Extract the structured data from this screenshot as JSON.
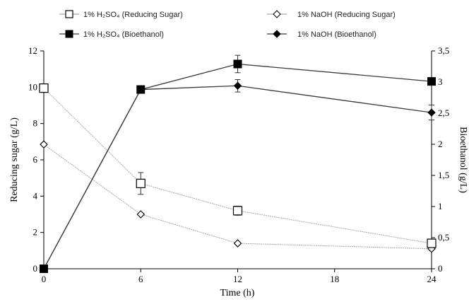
{
  "chart_data": {
    "type": "line",
    "x": [
      0,
      6,
      12,
      24
    ],
    "xlabel": "Time (h)",
    "xlim": [
      0,
      24
    ],
    "xticks": [
      "0",
      "6",
      "12",
      "18",
      "24"
    ],
    "ylabel": "Reducing sugar (g/L)",
    "ylim": [
      0,
      12
    ],
    "yticks": [
      "0",
      "2",
      "4",
      "6",
      "8",
      "10",
      "12"
    ],
    "y2label": "Bioethanol (g/L)",
    "y2lim": [
      0,
      3.5
    ],
    "y2ticks": [
      "0",
      "0,5",
      "1",
      "1,5",
      "2",
      "2,5",
      "3",
      "3,5"
    ],
    "grid": false,
    "legend_position": "top",
    "series": [
      {
        "name": "1% H₂SO₄ (Reducing Sugar)",
        "axis": "left",
        "marker": "open-square",
        "color": "#a6a6a6",
        "values": [
          9.95,
          4.7,
          3.2,
          1.4
        ],
        "errors": [
          0,
          0.6,
          0.25,
          0
        ]
      },
      {
        "name": "1% NaOH (Reducing Sugar)",
        "axis": "left",
        "marker": "open-diamond",
        "color": "#a6a6a6",
        "values": [
          6.85,
          3.0,
          1.4,
          1.1
        ],
        "errors": [
          0,
          0,
          0,
          0
        ]
      },
      {
        "name": "1% H₂SO₄ (Bioethanol)",
        "axis": "right",
        "marker": "filled-square",
        "color": "#3a3a3a",
        "values": [
          0,
          2.88,
          3.29,
          3.01
        ],
        "errors": [
          0,
          0,
          0.14,
          0
        ]
      },
      {
        "name": "1% NaOH (Bioethanol)",
        "axis": "right",
        "marker": "filled-diamond",
        "color": "#3a3a3a",
        "values": [
          0,
          2.88,
          2.94,
          2.51
        ],
        "errors": [
          0,
          0,
          0.1,
          0.12
        ]
      }
    ]
  }
}
